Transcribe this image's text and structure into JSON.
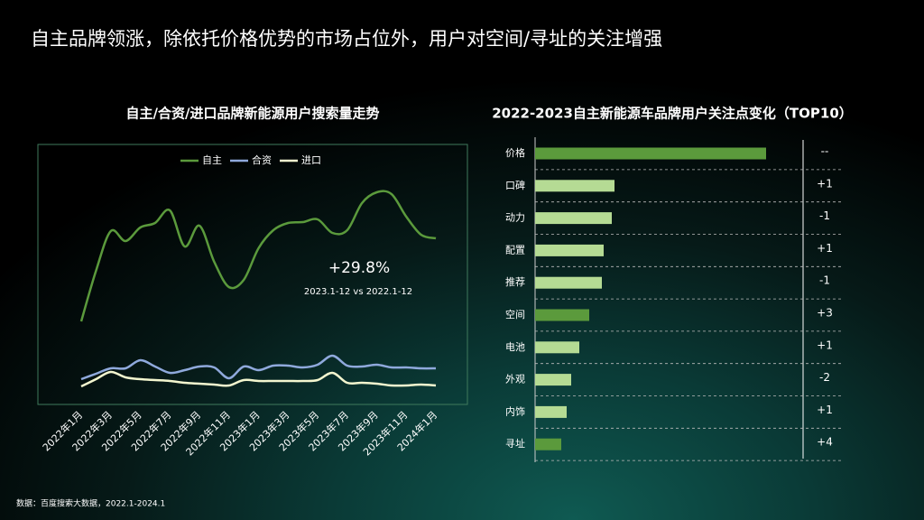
{
  "title": "自主品牌领涨，除依托价格优势的市场占位外，用户对空间/寻址的关注增强",
  "source": "数据：百度搜索大数据，2022.1-2024.1",
  "chart_data": [
    {
      "type": "line",
      "title": "自主/合资/进口品牌新能源用户搜索量走势",
      "categories": [
        "2022年1月",
        null,
        "2022年3月",
        null,
        "2022年5月",
        null,
        "2022年7月",
        null,
        "2022年9月",
        null,
        "2022年11月",
        null,
        "2023年1月",
        null,
        "2023年3月",
        null,
        "2023年5月",
        null,
        "2023年7月",
        null,
        "2023年9月",
        null,
        "2023年11月",
        null,
        "2024年1月"
      ],
      "series": [
        {
          "name": "自主",
          "color": "#5b9a3c",
          "values": [
            84,
            140,
            184,
            173,
            188,
            193,
            207,
            167,
            190,
            150,
            122,
            130,
            165,
            185,
            193,
            194,
            197,
            182,
            185,
            215,
            227,
            225,
            200,
            180,
            176
          ]
        },
        {
          "name": "合资",
          "color": "#8fa9dc",
          "values": [
            20,
            26,
            32,
            32,
            41,
            34,
            27,
            30,
            34,
            33,
            21,
            34,
            30,
            35,
            35,
            33,
            36,
            46,
            35,
            34,
            36,
            33,
            33,
            32,
            32
          ]
        },
        {
          "name": "进口",
          "color": "#f3f6cf",
          "values": [
            12,
            20,
            28,
            22,
            20,
            19,
            18,
            16,
            15,
            14,
            13,
            19,
            18,
            18,
            18,
            18,
            19,
            27,
            16,
            16,
            15,
            13,
            13,
            14,
            13
          ]
        }
      ],
      "ylim": [
        0,
        240
      ],
      "legend": "top",
      "annotation": "+29.8%",
      "annotation_note": "2023.1-12 vs 2022.1-12"
    },
    {
      "type": "hbar",
      "title": "2022-2023自主新能源车品牌用户关注点变化（TOP10）",
      "categories": [
        "价格",
        "口碑",
        "动力",
        "配置",
        "推荐",
        "空间",
        "电池",
        "外观",
        "内饰",
        "寻址"
      ],
      "values": [
        256,
        88,
        85,
        76,
        74,
        60,
        49,
        40,
        35,
        29
      ],
      "colors": [
        "#5b9a3c",
        "#b5db94",
        "#b5db94",
        "#b5db94",
        "#b5db94",
        "#5b9a3c",
        "#b5db94",
        "#b5db94",
        "#b5db94",
        "#5b9a3c"
      ],
      "changes": [
        "--",
        "+1",
        "-1",
        "+1",
        "-1",
        "+3",
        "+1",
        "-2",
        "+1",
        "+4"
      ],
      "xlim": [
        0,
        300
      ]
    }
  ]
}
